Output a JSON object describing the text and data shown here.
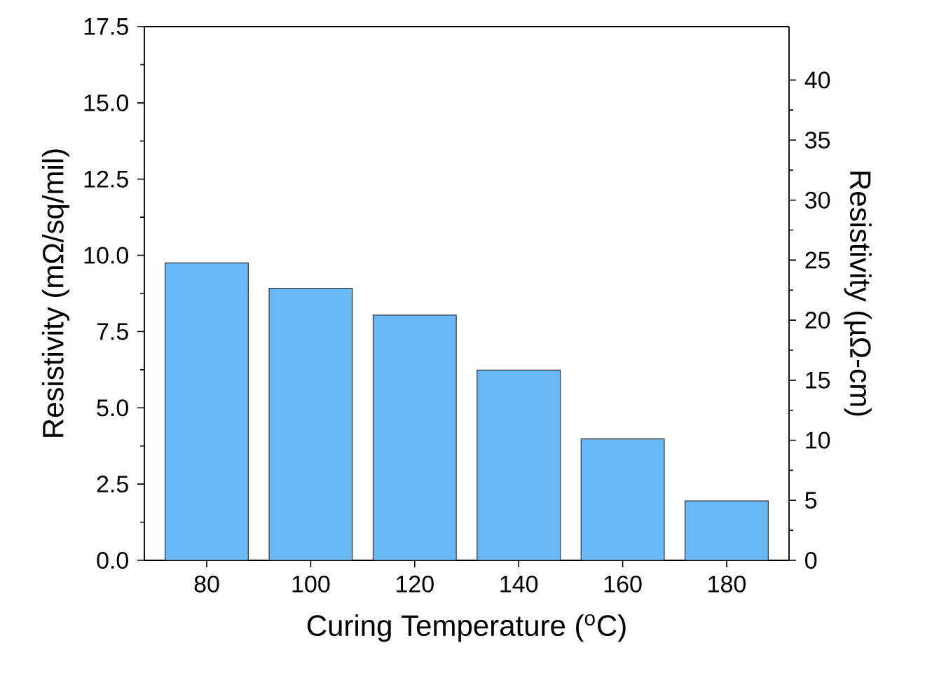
{
  "chart_data": {
    "type": "bar",
    "xlabel": "Curing Temperature ($^{o}$C)",
    "ylabel": "Resistivity (mΩ/sq/mil)",
    "y2label": "Resistivity (µΩ-cm)",
    "categories": [
      "80",
      "100",
      "120",
      "140",
      "160",
      "180"
    ],
    "values": [
      9.75,
      8.92,
      8.04,
      6.24,
      3.98,
      1.95
    ],
    "color": "#6ab8f5",
    "ylim": [
      0,
      17.5
    ],
    "yticks": [
      {
        "value": 0,
        "label": "0.0"
      },
      {
        "value": 2.5,
        "label": "2.5"
      },
      {
        "value": 5,
        "label": "5.0"
      },
      {
        "value": 7.5,
        "label": "7.5"
      },
      {
        "value": 10,
        "label": "10.0"
      },
      {
        "value": 12.5,
        "label": "12.5"
      },
      {
        "value": 15,
        "label": "15.0"
      },
      {
        "value": 17.5,
        "label": "17.5"
      }
    ],
    "y2lim": [
      0,
      44.45
    ],
    "y2ticks": [
      0,
      5,
      10,
      15,
      20,
      25,
      30,
      35,
      40
    ]
  }
}
